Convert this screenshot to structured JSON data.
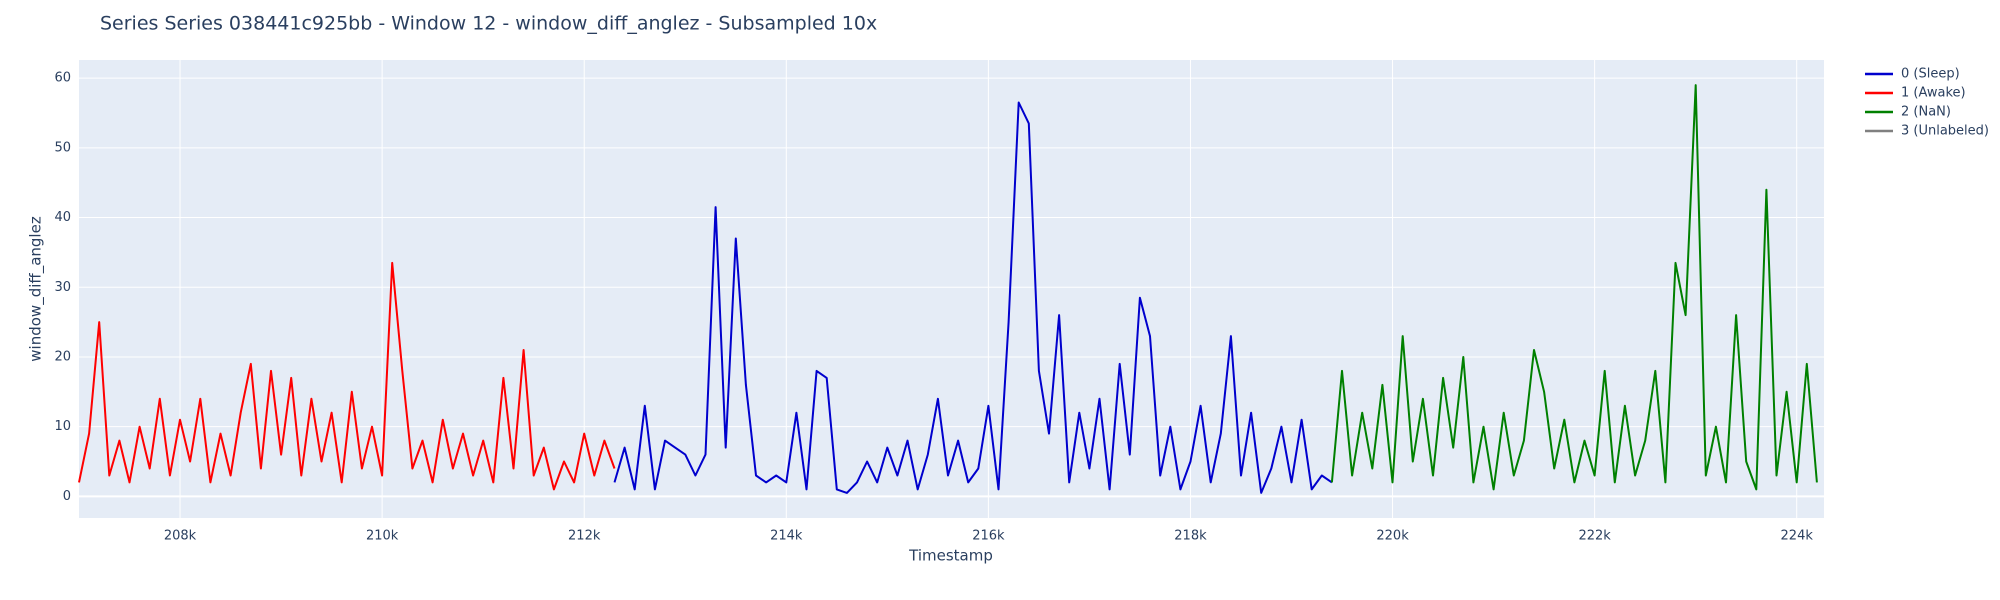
{
  "chart_data": {
    "type": "line",
    "title": "Series Series 038441c925bb - Window 12 - window_diff_anglez - Subsampled 10x",
    "x_label": "Timestamp",
    "y_label": "window_diff_anglez",
    "xlim": [
      207000,
      224270
    ],
    "ylim": [
      -3.1,
      62.6
    ],
    "xticks": [
      {
        "value": 208000,
        "label": "208k"
      },
      {
        "value": 210000,
        "label": "210k"
      },
      {
        "value": 212000,
        "label": "212k"
      },
      {
        "value": 214000,
        "label": "214k"
      },
      {
        "value": 216000,
        "label": "216k"
      },
      {
        "value": 218000,
        "label": "218k"
      },
      {
        "value": 220000,
        "label": "220k"
      },
      {
        "value": 222000,
        "label": "222k"
      },
      {
        "value": 224000,
        "label": "224k"
      }
    ],
    "yticks": [
      0,
      10,
      20,
      30,
      40,
      50,
      60
    ],
    "grid": true,
    "legend": "outside-right",
    "series": [
      {
        "name": "0 (Sleep)",
        "color": "#0000cd",
        "x": [
          212300,
          212400,
          212500,
          212600,
          212700,
          212800,
          212900,
          213000,
          213100,
          213200,
          213300,
          213400,
          213500,
          213600,
          213700,
          213800,
          213900,
          214000,
          214100,
          214200,
          214300,
          214400,
          214500,
          214600,
          214700,
          214800,
          214900,
          215000,
          215100,
          215200,
          215300,
          215400,
          215500,
          215600,
          215700,
          215800,
          215900,
          216000,
          216100,
          216200,
          216300,
          216400,
          216500,
          216600,
          216700,
          216800,
          216900,
          217000,
          217100,
          217200,
          217300,
          217400,
          217500,
          217600,
          217700,
          217800,
          217900,
          218000,
          218100,
          218200,
          218300,
          218400,
          218500,
          218600,
          218700,
          218800,
          218900,
          219000,
          219100,
          219200,
          219300,
          219400
        ],
        "values": [
          2,
          7,
          1,
          13,
          1,
          8,
          7,
          6,
          3,
          6,
          41.5,
          7,
          37,
          16,
          3,
          2,
          3,
          2,
          12,
          1,
          18,
          17,
          1,
          0.5,
          2,
          5,
          2,
          7,
          3,
          8,
          1,
          6,
          14,
          3,
          8,
          2,
          4,
          13,
          1,
          25,
          56.5,
          53.5,
          18,
          9,
          26,
          2,
          12,
          4,
          14,
          1,
          19,
          6,
          28.5,
          23,
          3,
          10,
          1,
          5,
          13,
          2,
          9,
          23,
          3,
          12,
          0.5,
          4,
          10,
          2,
          11,
          1,
          3,
          2
        ]
      },
      {
        "name": "1 (Awake)",
        "color": "#ff0000",
        "x": [
          207000,
          207100,
          207200,
          207300,
          207400,
          207500,
          207600,
          207700,
          207800,
          207900,
          208000,
          208100,
          208200,
          208300,
          208400,
          208500,
          208600,
          208700,
          208800,
          208900,
          209000,
          209100,
          209200,
          209300,
          209400,
          209500,
          209600,
          209700,
          209800,
          209900,
          210000,
          210100,
          210200,
          210300,
          210400,
          210500,
          210600,
          210700,
          210800,
          210900,
          211000,
          211100,
          211200,
          211300,
          211400,
          211500,
          211600,
          211700,
          211800,
          211900,
          212000,
          212100,
          212200,
          212300
        ],
        "values": [
          2,
          9,
          25,
          3,
          8,
          2,
          10,
          4,
          14,
          3,
          11,
          5,
          14,
          2,
          9,
          3,
          12,
          19,
          4,
          18,
          6,
          17,
          3,
          14,
          5,
          12,
          2,
          15,
          4,
          10,
          3,
          33.5,
          18,
          4,
          8,
          2,
          11,
          4,
          9,
          3,
          8,
          2,
          17,
          4,
          21,
          3,
          7,
          1,
          5,
          2,
          9,
          3,
          8,
          4
        ]
      },
      {
        "name": "2 (NaN)",
        "color": "#008000",
        "x": [
          219400,
          219500,
          219600,
          219700,
          219800,
          219900,
          220000,
          220100,
          220200,
          220300,
          220400,
          220500,
          220600,
          220700,
          220800,
          220900,
          221000,
          221100,
          221200,
          221300,
          221400,
          221500,
          221600,
          221700,
          221800,
          221900,
          222000,
          222100,
          222200,
          222300,
          222400,
          222500,
          222600,
          222700,
          222800,
          222900,
          223000,
          223100,
          223200,
          223300,
          223400,
          223500,
          223600,
          223700,
          223800,
          223900,
          224000,
          224100,
          224200
        ],
        "values": [
          2,
          18,
          3,
          12,
          4,
          16,
          2,
          23,
          5,
          14,
          3,
          17,
          7,
          20,
          2,
          10,
          1,
          12,
          3,
          8,
          21,
          15,
          4,
          11,
          2,
          8,
          3,
          18,
          2,
          13,
          3,
          8,
          18,
          2,
          33.5,
          26,
          59,
          3,
          10,
          2,
          26,
          5,
          1,
          44,
          3,
          15,
          2,
          19,
          2
        ]
      },
      {
        "name": "3 (Unlabeled)",
        "color": "#808080",
        "x": [],
        "values": []
      }
    ]
  }
}
